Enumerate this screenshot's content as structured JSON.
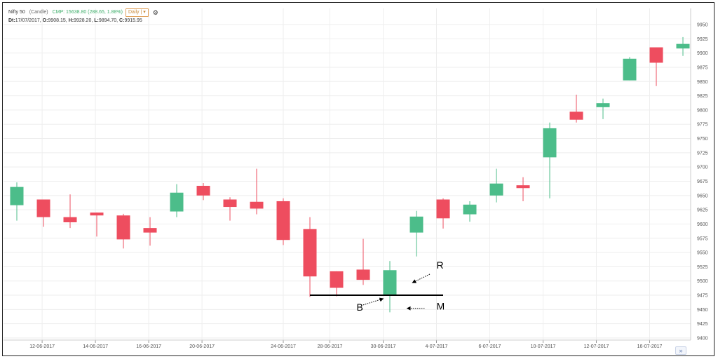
{
  "header": {
    "title": "Nifty 50",
    "chart_type": "(Candle)",
    "cmp": "CMP: 15638.80 (288.65, 1.88%)",
    "interval": "Daily |",
    "interval_caret": "▾",
    "settings_icon": "gear-icon",
    "ohlc": {
      "dt_label": "Dt:",
      "dt": "17/07/2017",
      "o_label": "O:",
      "o": "9908.15",
      "h_label": "H:",
      "h": "9928.20",
      "l_label": "L:",
      "l": "9894.70",
      "c_label": "C:",
      "c": "9915.95"
    }
  },
  "colors": {
    "up": "#4cbd8a",
    "down": "#ee4d5f",
    "grid": "#eeeeee",
    "axis_text": "#555555",
    "accent": "#e0a15a"
  },
  "chart_data": {
    "type": "candlestick",
    "ylim": [
      9400,
      9950
    ],
    "y_ticks": [
      9400,
      9425,
      9450,
      9475,
      9500,
      9525,
      9550,
      9575,
      9600,
      9625,
      9650,
      9675,
      9700,
      9725,
      9750,
      9775,
      9800,
      9825,
      9850,
      9875,
      9900,
      9925,
      9950
    ],
    "x_ticks": [
      {
        "index": 0.95,
        "label": "12-06-2017"
      },
      {
        "index": 2.95,
        "label": "14-06-2017"
      },
      {
        "index": 4.95,
        "label": "16-06-2017"
      },
      {
        "index": 6.95,
        "label": "20-06-2017"
      },
      {
        "index": 10.0,
        "label": "24-06-2017"
      },
      {
        "index": 11.75,
        "label": "28-06-2017"
      },
      {
        "index": 13.75,
        "label": "30-06-2017"
      },
      {
        "index": 15.75,
        "label": "4-07-2017"
      },
      {
        "index": 17.75,
        "label": "6-07-2017"
      },
      {
        "index": 19.75,
        "label": "10-07-2017"
      },
      {
        "index": 21.75,
        "label": "12-07-2017"
      },
      {
        "index": 23.75,
        "label": "16-07-2017"
      }
    ],
    "candles": [
      {
        "o": 9633,
        "h": 9673,
        "l": 9606,
        "c": 9665
      },
      {
        "o": 9643,
        "h": 9643,
        "l": 9595,
        "c": 9612
      },
      {
        "o": 9612,
        "h": 9652,
        "l": 9593,
        "c": 9603
      },
      {
        "o": 9620,
        "h": 9620,
        "l": 9578,
        "c": 9615
      },
      {
        "o": 9615,
        "h": 9618,
        "l": 9557,
        "c": 9573
      },
      {
        "o": 9593,
        "h": 9612,
        "l": 9562,
        "c": 9585
      },
      {
        "o": 9622,
        "h": 9670,
        "l": 9612,
        "c": 9655
      },
      {
        "o": 9667,
        "h": 9672,
        "l": 9642,
        "c": 9650
      },
      {
        "o": 9643,
        "h": 9647,
        "l": 9606,
        "c": 9630
      },
      {
        "o": 9639,
        "h": 9697,
        "l": 9617,
        "c": 9627
      },
      {
        "o": 9640,
        "h": 9645,
        "l": 9563,
        "c": 9572
      },
      {
        "o": 9591,
        "h": 9612,
        "l": 9472,
        "c": 9508
      },
      {
        "o": 9517,
        "h": 9517,
        "l": 9473,
        "c": 9488
      },
      {
        "o": 9520,
        "h": 9574,
        "l": 9493,
        "c": 9502
      },
      {
        "o": 9475,
        "h": 9535,
        "l": 9445,
        "c": 9519
      },
      {
        "o": 9585,
        "h": 9623,
        "l": 9543,
        "c": 9613
      },
      {
        "o": 9643,
        "h": 9645,
        "l": 9592,
        "c": 9610
      },
      {
        "o": 9617,
        "h": 9640,
        "l": 9604,
        "c": 9634
      },
      {
        "o": 9650,
        "h": 9697,
        "l": 9638,
        "c": 9671
      },
      {
        "o": 9668,
        "h": 9682,
        "l": 9640,
        "c": 9663
      },
      {
        "o": 9717,
        "h": 9778,
        "l": 9645,
        "c": 9768
      },
      {
        "o": 9797,
        "h": 9827,
        "l": 9778,
        "c": 9783
      },
      {
        "o": 9805,
        "h": 9820,
        "l": 9784,
        "c": 9812
      },
      {
        "o": 9852,
        "h": 9893,
        "l": 9852,
        "c": 9890
      },
      {
        "o": 9910,
        "h": 9910,
        "l": 9842,
        "c": 9883
      },
      {
        "o": 9908,
        "h": 9928,
        "l": 9895,
        "c": 9916
      }
    ],
    "support_line": {
      "price": 9475,
      "from_index": 11.0,
      "to_index": 16.0
    },
    "annotations": [
      {
        "label": "R",
        "text_index": 15.75,
        "text_price": 9522,
        "arrow_from_index": 15.5,
        "arrow_from_price": 9512,
        "arrow_to_index": 14.85,
        "arrow_to_price": 9497
      },
      {
        "label": "B",
        "text_index": 12.75,
        "text_price": 9448,
        "arrow_from_index": 13.0,
        "arrow_from_price": 9458,
        "arrow_to_index": 13.75,
        "arrow_to_price": 9469
      },
      {
        "label": "M",
        "text_index": 15.75,
        "text_price": 9450,
        "arrow_from_index": 15.3,
        "arrow_from_price": 9452,
        "arrow_to_index": 14.65,
        "arrow_to_price": 9452
      }
    ]
  },
  "scroll_button": {
    "label": "»",
    "icon": "double-chevron-right-icon"
  }
}
